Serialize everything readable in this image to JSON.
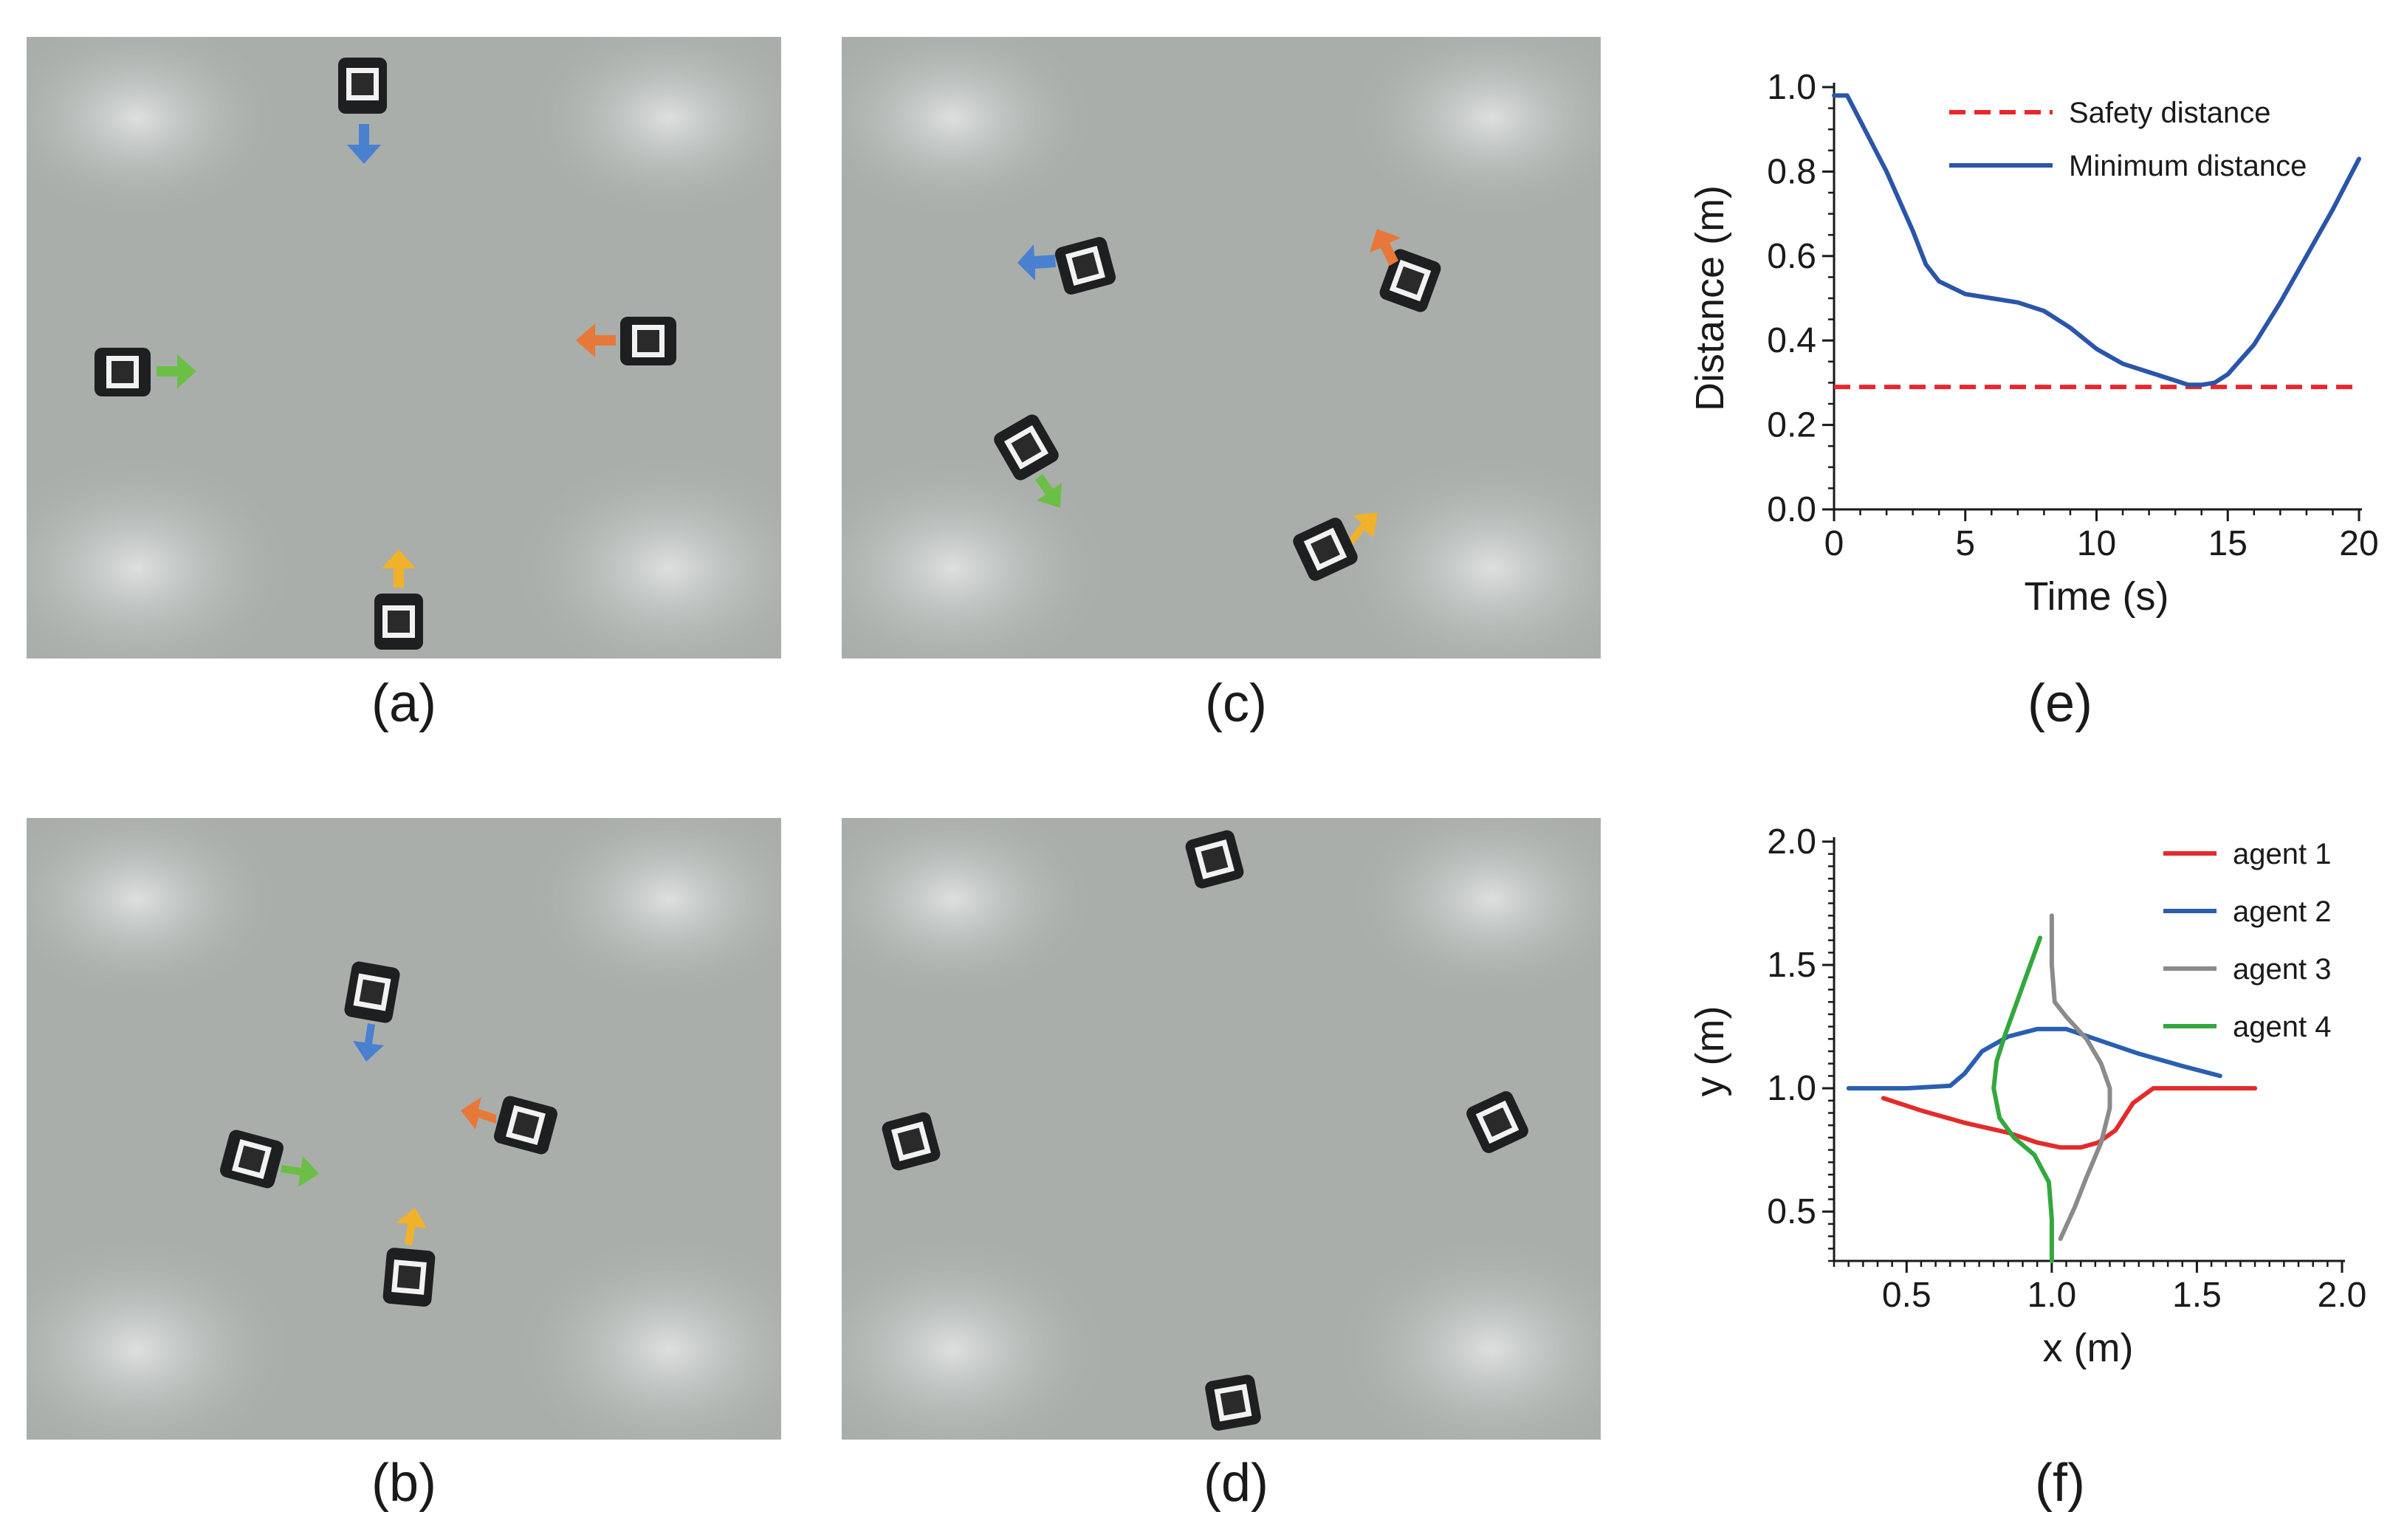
{
  "panels": {
    "a": {
      "caption": "(a)"
    },
    "b": {
      "caption": "(b)"
    },
    "c": {
      "caption": "(c)"
    },
    "d": {
      "caption": "(d)"
    },
    "e": {
      "caption": "(e)"
    },
    "f": {
      "caption": "(f)"
    }
  },
  "colors": {
    "floor": "#a9aeab",
    "agent_blue": "#4a80d0",
    "agent_orange": "#e8783a",
    "agent_green": "#6cbf46",
    "agent_yellow": "#f1b22a",
    "safety_red": "#e8262b",
    "min_blue": "#2a55a8",
    "agent1": "#e32b2b",
    "agent2": "#2a5fb0",
    "agent3": "#8b8b8b",
    "agent4": "#33a83d"
  },
  "chart_data": [
    {
      "id": "e",
      "type": "line",
      "title": "",
      "xlabel": "Time (s)",
      "ylabel": "Distance (m)",
      "xlim": [
        0,
        20
      ],
      "ylim": [
        0,
        1.0
      ],
      "xticks": [
        0,
        5,
        10,
        15,
        20
      ],
      "yticks": [
        0.0,
        0.2,
        0.4,
        0.6,
        0.8,
        1.0
      ],
      "xtick_labels": [
        "0",
        "5",
        "10",
        "15",
        "20"
      ],
      "ytick_labels": [
        "0.0",
        "0.2",
        "0.4",
        "0.6",
        "0.8",
        "1.0"
      ],
      "grid": false,
      "legend_position": "top-right",
      "series": [
        {
          "name": "Safety distance",
          "style": "dashed",
          "color": "#e8262b",
          "x": [
            0,
            20
          ],
          "y": [
            0.29,
            0.29
          ]
        },
        {
          "name": "Minimum distance",
          "style": "solid",
          "color": "#2a55a8",
          "x": [
            0,
            0.5,
            1,
            2,
            3,
            3.5,
            4,
            5,
            6,
            7,
            8,
            9,
            10,
            11,
            12,
            13,
            13.5,
            14,
            14.5,
            15,
            16,
            17,
            18,
            19,
            20
          ],
          "y": [
            0.98,
            0.98,
            0.92,
            0.8,
            0.66,
            0.58,
            0.54,
            0.51,
            0.5,
            0.49,
            0.47,
            0.43,
            0.38,
            0.345,
            0.325,
            0.305,
            0.295,
            0.295,
            0.3,
            0.32,
            0.39,
            0.49,
            0.6,
            0.71,
            0.83
          ]
        }
      ]
    },
    {
      "id": "f",
      "type": "line",
      "title": "",
      "xlabel": "x (m)",
      "ylabel": "y (m)",
      "xlim": [
        0.25,
        2.0
      ],
      "ylim": [
        0.3,
        2.0
      ],
      "xticks": [
        0.5,
        1.0,
        1.5,
        2.0
      ],
      "yticks": [
        0.5,
        1.0,
        1.5,
        2.0
      ],
      "xtick_labels": [
        "0.5",
        "1.0",
        "1.5",
        "2.0"
      ],
      "ytick_labels": [
        "0.5",
        "1.0",
        "1.5",
        "2.0"
      ],
      "grid": false,
      "legend_position": "top-right",
      "series": [
        {
          "name": "agent 1",
          "color": "#e32b2b",
          "x": [
            0.42,
            0.55,
            0.7,
            0.85,
            0.95,
            1.03,
            1.1,
            1.16,
            1.22,
            1.28,
            1.35,
            1.5,
            1.7
          ],
          "y": [
            0.96,
            0.91,
            0.86,
            0.82,
            0.78,
            0.76,
            0.76,
            0.78,
            0.83,
            0.94,
            1.0,
            1.0,
            1.0
          ]
        },
        {
          "name": "agent 2",
          "color": "#2a5fb0",
          "x": [
            0.3,
            0.5,
            0.65,
            0.7,
            0.76,
            0.85,
            0.95,
            1.05,
            1.15,
            1.3,
            1.45,
            1.58
          ],
          "y": [
            1.0,
            1.0,
            1.01,
            1.06,
            1.15,
            1.21,
            1.24,
            1.24,
            1.2,
            1.14,
            1.09,
            1.05
          ]
        },
        {
          "name": "agent 3",
          "color": "#8b8b8b",
          "x": [
            1.0,
            1.0,
            1.01,
            1.05,
            1.12,
            1.17,
            1.2,
            1.2,
            1.17,
            1.12,
            1.08,
            1.03
          ],
          "y": [
            1.7,
            1.5,
            1.35,
            1.29,
            1.2,
            1.1,
            1.0,
            0.92,
            0.78,
            0.64,
            0.52,
            0.39
          ]
        },
        {
          "name": "agent 4",
          "color": "#33a83d",
          "x": [
            0.96,
            0.92,
            0.88,
            0.84,
            0.81,
            0.8,
            0.82,
            0.87,
            0.94,
            0.99,
            1.0,
            1.0
          ],
          "y": [
            1.61,
            1.48,
            1.35,
            1.22,
            1.11,
            1.0,
            0.88,
            0.8,
            0.73,
            0.62,
            0.47,
            0.3
          ]
        }
      ]
    }
  ]
}
